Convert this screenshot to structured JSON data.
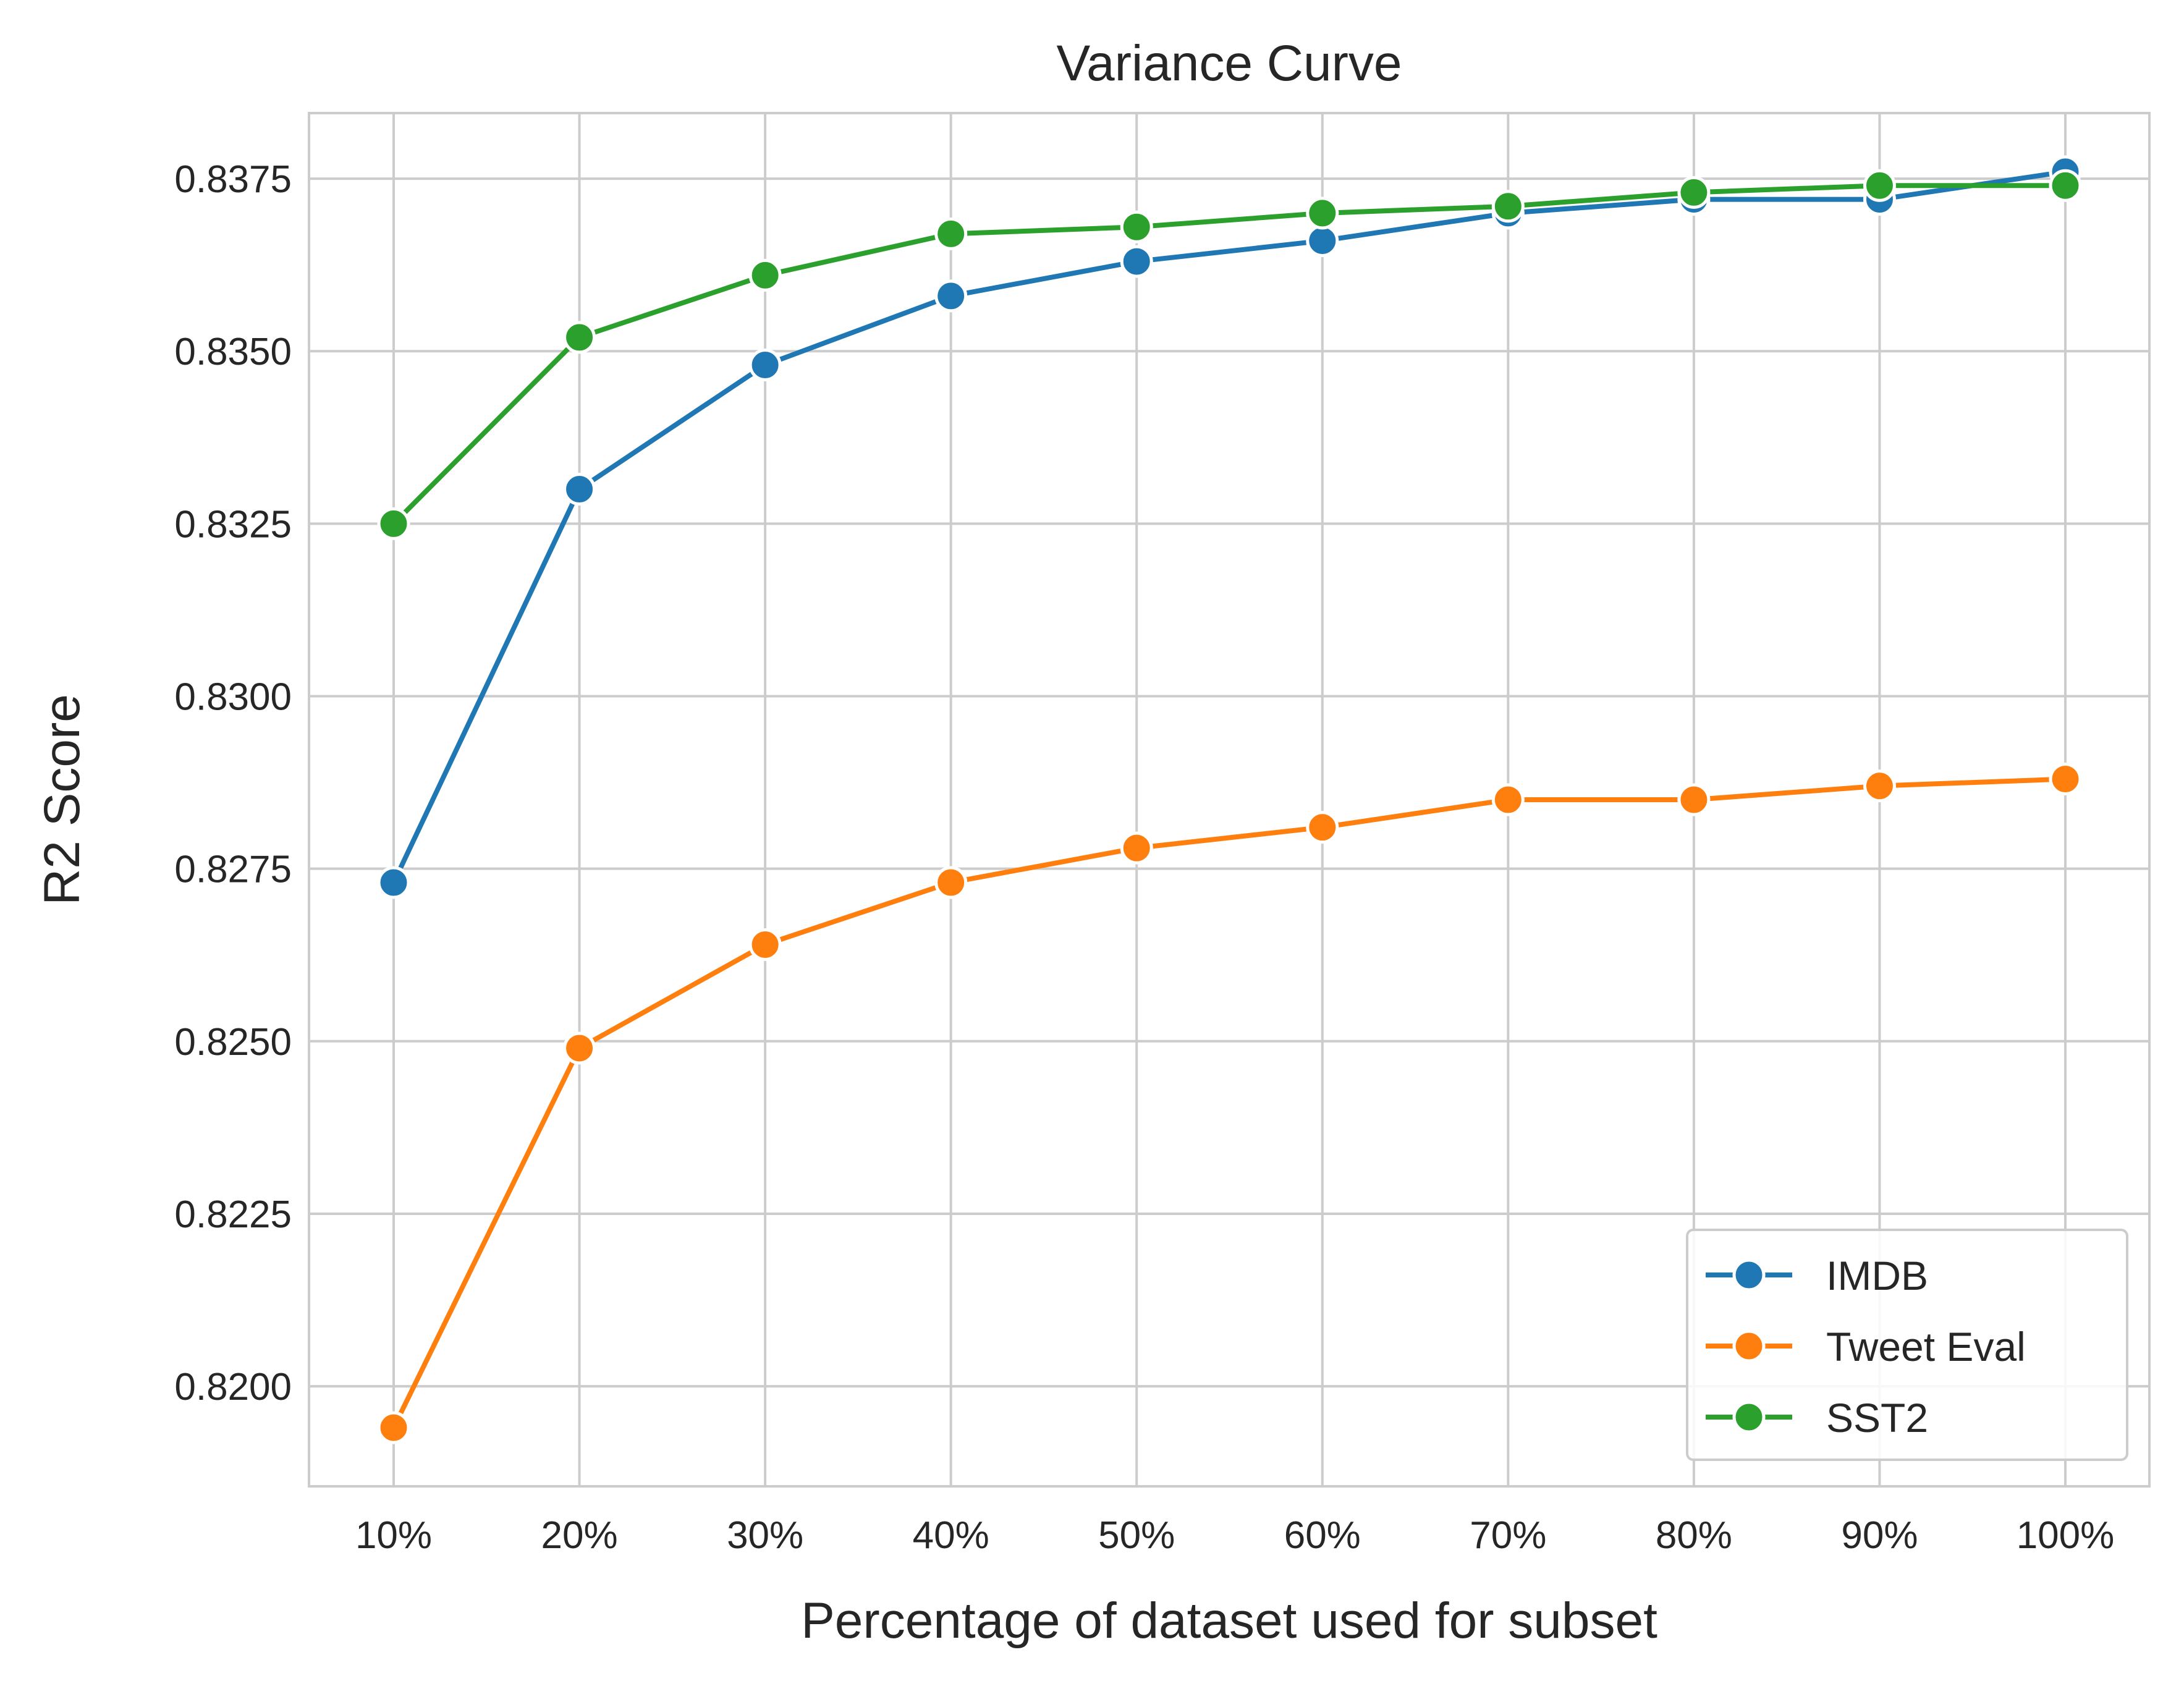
{
  "chart_data": {
    "type": "line",
    "title": "Variance Curve",
    "xlabel": "Percentage of dataset used for subset",
    "ylabel": "R2 Score",
    "categories": [
      "10%",
      "20%",
      "30%",
      "40%",
      "50%",
      "60%",
      "70%",
      "80%",
      "90%",
      "100%"
    ],
    "ylim": [
      0.81855,
      0.83845
    ],
    "yticks": [
      0.82,
      0.8225,
      0.825,
      0.8275,
      0.83,
      0.8325,
      0.835,
      0.8375
    ],
    "ytick_labels": [
      "0.8200",
      "0.8225",
      "0.8250",
      "0.8275",
      "0.8300",
      "0.8325",
      "0.8350",
      "0.8375"
    ],
    "grid": true,
    "legend_position": "bottom-right",
    "series": [
      {
        "name": "IMDB",
        "color": "#1f77b4",
        "values": [
          0.8273,
          0.833,
          0.8348,
          0.8358,
          0.8363,
          0.8366,
          0.837,
          0.8372,
          0.8372,
          0.8376
        ]
      },
      {
        "name": "Tweet Eval",
        "color": "#ff7f0e",
        "values": [
          0.8194,
          0.8249,
          0.8264,
          0.8273,
          0.8278,
          0.8281,
          0.8285,
          0.8285,
          0.8287,
          0.8288
        ]
      },
      {
        "name": "SST2",
        "color": "#2ca02c",
        "values": [
          0.8325,
          0.8352,
          0.8361,
          0.8367,
          0.8368,
          0.837,
          0.8371,
          0.8373,
          0.8374,
          0.8374
        ]
      }
    ]
  }
}
